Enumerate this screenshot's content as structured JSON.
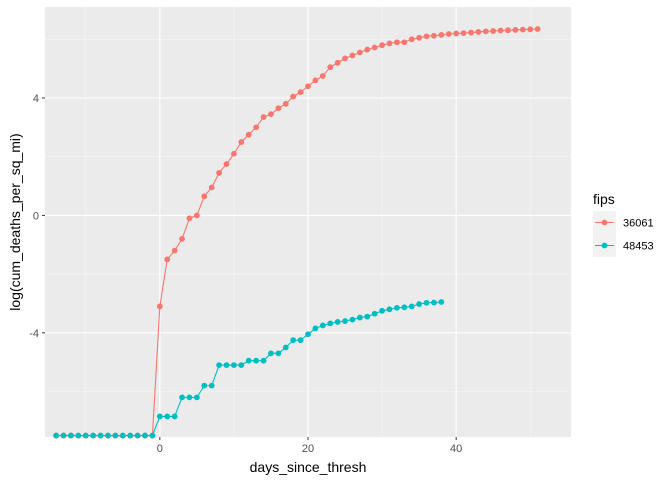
{
  "chart_data": {
    "type": "line",
    "xlabel": "days_since_thresh",
    "ylabel": "log(cum_deaths_per_sq_mi)",
    "xlim": [
      -15.5,
      55.5
    ],
    "ylim": [
      -7.55,
      7.1
    ],
    "x_ticks": [
      0,
      20,
      40
    ],
    "y_ticks": [
      4,
      0,
      -4
    ],
    "x_tick_labels": [
      "0",
      "20",
      "40"
    ],
    "y_tick_labels": [
      "4",
      "0",
      "-4"
    ],
    "grid": true,
    "legend": {
      "title": "fips",
      "position": "right"
    },
    "series": [
      {
        "name": "36061",
        "color": "#f8766d",
        "x": [
          -14,
          -13,
          -12,
          -11,
          -10,
          -9,
          -8,
          -7,
          -6,
          -5,
          -4,
          -3,
          -2,
          -1,
          0,
          1,
          2,
          3,
          4,
          5,
          6,
          7,
          8,
          9,
          10,
          11,
          12,
          13,
          14,
          15,
          16,
          17,
          18,
          19,
          20,
          21,
          22,
          23,
          24,
          25,
          26,
          27,
          28,
          29,
          30,
          31,
          32,
          33,
          34,
          35,
          36,
          37,
          38,
          39,
          40,
          41,
          42,
          43,
          44,
          45,
          46,
          47,
          48,
          49,
          50,
          51
        ],
        "y": [
          -7.5,
          -7.5,
          -7.5,
          -7.5,
          -7.5,
          -7.5,
          -7.5,
          -7.5,
          -7.5,
          -7.5,
          -7.5,
          -7.5,
          -7.5,
          -7.5,
          -3.1,
          -1.5,
          -1.2,
          -0.8,
          -0.1,
          0.0,
          0.65,
          0.95,
          1.45,
          1.75,
          2.1,
          2.5,
          2.75,
          3.0,
          3.35,
          3.45,
          3.65,
          3.8,
          4.05,
          4.2,
          4.4,
          4.6,
          4.75,
          5.05,
          5.2,
          5.35,
          5.45,
          5.55,
          5.65,
          5.72,
          5.8,
          5.86,
          5.9,
          5.9,
          6.0,
          6.05,
          6.1,
          6.12,
          6.15,
          6.18,
          6.2,
          6.21,
          6.23,
          6.25,
          6.27,
          6.28,
          6.3,
          6.31,
          6.32,
          6.33,
          6.34,
          6.35
        ]
      },
      {
        "name": "48453",
        "color": "#00bfc4",
        "x": [
          -14,
          -13,
          -12,
          -11,
          -10,
          -9,
          -8,
          -7,
          -6,
          -5,
          -4,
          -3,
          -2,
          -1,
          0,
          1,
          2,
          3,
          4,
          5,
          6,
          7,
          8,
          9,
          10,
          11,
          12,
          13,
          14,
          15,
          16,
          17,
          18,
          19,
          20,
          21,
          22,
          23,
          24,
          25,
          26,
          27,
          28,
          29,
          30,
          31,
          32,
          33,
          34,
          35,
          36,
          37,
          38
        ],
        "y": [
          -7.5,
          -7.5,
          -7.5,
          -7.5,
          -7.5,
          -7.5,
          -7.5,
          -7.5,
          -7.5,
          -7.5,
          -7.5,
          -7.5,
          -7.5,
          -7.5,
          -6.85,
          -6.85,
          -6.85,
          -6.2,
          -6.2,
          -6.2,
          -5.8,
          -5.8,
          -5.1,
          -5.1,
          -5.1,
          -5.1,
          -4.95,
          -4.95,
          -4.95,
          -4.7,
          -4.7,
          -4.5,
          -4.25,
          -4.25,
          -4.05,
          -3.85,
          -3.75,
          -3.68,
          -3.63,
          -3.6,
          -3.55,
          -3.48,
          -3.45,
          -3.35,
          -3.25,
          -3.2,
          -3.15,
          -3.13,
          -3.1,
          -3.02,
          -2.98,
          -2.97,
          -2.95
        ]
      }
    ]
  }
}
